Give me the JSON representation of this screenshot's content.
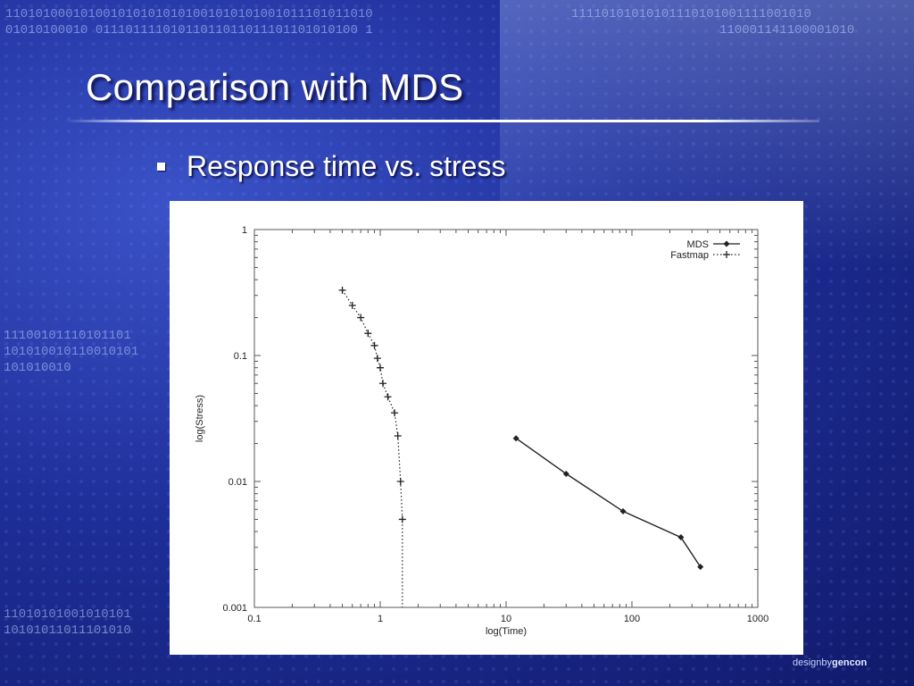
{
  "slide": {
    "title": "Comparison with MDS",
    "bullet": "Response time vs. stress",
    "footer_design": "designby",
    "footer_brand": "gencon"
  },
  "background": {
    "binary_lines": [
      "1101010001010010101010101001010101001011101011010",
      "01010100010  01110111101011011011011101101010100 1",
      "11100101110101101",
      "101010010110010101",
      "101010010",
      "11010101001010101",
      "10101011011101010",
      "11110101010101110101001111001010",
      "110001141100001010"
    ]
  },
  "chart_data": {
    "type": "line",
    "xlabel": "log(Time)",
    "ylabel": "log(Stress)",
    "xscale": "log",
    "yscale": "log",
    "xlim": [
      0.1,
      1000
    ],
    "ylim": [
      0.001,
      1
    ],
    "x_ticks": [
      0.1,
      1,
      10,
      100,
      1000
    ],
    "x_tick_labels": [
      "0.1",
      "1",
      "10",
      "100",
      "1000"
    ],
    "y_ticks": [
      0.001,
      0.01,
      0.1,
      1
    ],
    "y_tick_labels": [
      "0.001",
      "0.01",
      "0.1",
      "1"
    ],
    "legend_position": "top-right",
    "series": [
      {
        "name": "MDS",
        "style": "solid",
        "marker": "diamond",
        "points": [
          [
            12,
            0.022
          ],
          [
            30,
            0.0115
          ],
          [
            85,
            0.0058
          ],
          [
            245,
            0.0036
          ],
          [
            350,
            0.0021
          ]
        ]
      },
      {
        "name": "Fastmap",
        "style": "dotted",
        "marker": "plus",
        "points": [
          [
            0.5,
            0.33
          ],
          [
            0.6,
            0.25
          ],
          [
            0.7,
            0.2
          ],
          [
            0.8,
            0.15
          ],
          [
            0.9,
            0.12
          ],
          [
            0.95,
            0.095
          ],
          [
            1.0,
            0.08
          ],
          [
            1.05,
            0.06
          ],
          [
            1.15,
            0.047
          ],
          [
            1.3,
            0.035
          ],
          [
            1.38,
            0.023
          ],
          [
            1.45,
            0.01
          ],
          [
            1.5,
            0.005
          ],
          [
            1.5,
            0.001
          ]
        ]
      }
    ]
  }
}
